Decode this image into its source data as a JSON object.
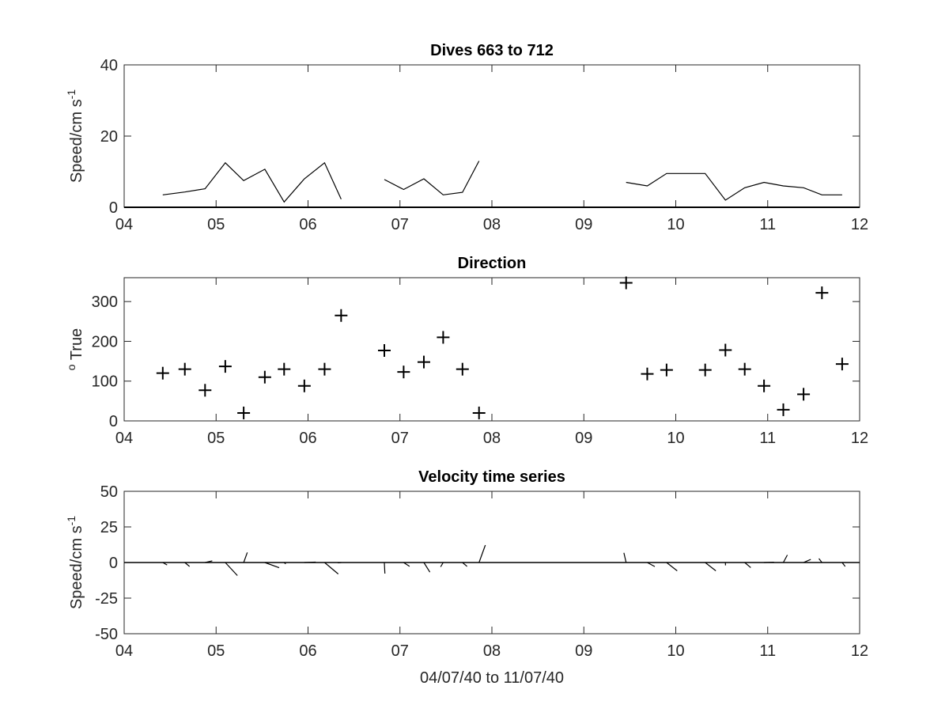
{
  "chart_data": [
    {
      "type": "line",
      "title": "Dives 663 to 712",
      "ylabel": "Speed/cm s",
      "ylabel_sup": "-1",
      "xlim": [
        4,
        12
      ],
      "ylim": [
        0,
        40
      ],
      "xticks": [
        4,
        5,
        6,
        7,
        8,
        9,
        10,
        11,
        12
      ],
      "xtick_labels": [
        "04",
        "05",
        "06",
        "07",
        "08",
        "09",
        "10",
        "11",
        "12"
      ],
      "yticks": [
        0,
        20,
        40
      ],
      "ytick_labels": [
        "0",
        "20",
        "40"
      ],
      "segments": [
        {
          "x": [
            4.42,
            4.66,
            4.88,
            5.1,
            5.3,
            5.53,
            5.74,
            5.96,
            6.18,
            6.36
          ],
          "y": [
            3.5,
            4.3,
            5.2,
            12.5,
            7.5,
            10.7,
            1.5,
            8.0,
            12.5,
            2.3
          ]
        },
        {
          "x": [
            6.83,
            7.04,
            7.26,
            7.47,
            7.68,
            7.86
          ],
          "y": [
            7.8,
            5.0,
            8.0,
            3.5,
            4.2,
            13.0
          ]
        },
        {
          "x": [
            9.46,
            9.69,
            9.9,
            10.11,
            10.32,
            10.54,
            10.75,
            10.96,
            11.17,
            11.39,
            11.59,
            11.81
          ],
          "y": [
            7.0,
            6.0,
            9.5,
            9.5,
            9.5,
            2.0,
            5.5,
            7.0,
            6.0,
            5.5,
            3.5,
            3.5
          ]
        }
      ]
    },
    {
      "type": "scatter",
      "title": "Direction",
      "ylabel": " True",
      "ylabel_prefix_sup": "o",
      "xlim": [
        4,
        12
      ],
      "ylim": [
        0,
        360
      ],
      "xticks": [
        4,
        5,
        6,
        7,
        8,
        9,
        10,
        11,
        12
      ],
      "xtick_labels": [
        "04",
        "05",
        "06",
        "07",
        "08",
        "09",
        "10",
        "11",
        "12"
      ],
      "yticks": [
        0,
        100,
        200,
        300
      ],
      "ytick_labels": [
        "0",
        "100",
        "200",
        "300"
      ],
      "marker": "+",
      "x": [
        4.42,
        4.66,
        4.88,
        5.1,
        5.3,
        5.53,
        5.74,
        5.96,
        6.18,
        6.36,
        6.83,
        7.04,
        7.26,
        7.47,
        7.68,
        7.86,
        9.46,
        9.69,
        9.9,
        10.32,
        10.54,
        10.75,
        10.96,
        11.17,
        11.39,
        11.59,
        11.81
      ],
      "y": [
        120,
        130,
        77,
        137,
        20,
        110,
        130,
        88,
        130,
        265,
        177,
        123,
        148,
        210,
        130,
        20,
        347,
        118,
        128,
        128,
        178,
        130,
        88,
        28,
        67,
        322,
        143
      ]
    },
    {
      "type": "vector",
      "title": "Velocity time series",
      "ylabel": "Speed/cm s",
      "ylabel_sup": "-1",
      "xlabel": "04/07/40 to 11/07/40",
      "xlim": [
        4,
        12
      ],
      "ylim": [
        -50,
        50
      ],
      "xticks": [
        4,
        5,
        6,
        7,
        8,
        9,
        10,
        11,
        12
      ],
      "xtick_labels": [
        "04",
        "05",
        "06",
        "07",
        "08",
        "09",
        "10",
        "11",
        "12"
      ],
      "yticks": [
        -50,
        -25,
        0,
        25,
        50
      ],
      "ytick_labels": [
        "-50",
        "-25",
        "0",
        "25",
        "50"
      ],
      "vectors": [
        {
          "x": 4.42,
          "speed": 3.5,
          "dir": 120
        },
        {
          "x": 4.66,
          "speed": 4.3,
          "dir": 130
        },
        {
          "x": 4.88,
          "speed": 5.2,
          "dir": 77
        },
        {
          "x": 5.1,
          "speed": 12.5,
          "dir": 137
        },
        {
          "x": 5.3,
          "speed": 7.5,
          "dir": 20
        },
        {
          "x": 5.53,
          "speed": 10.7,
          "dir": 110
        },
        {
          "x": 5.74,
          "speed": 1.5,
          "dir": 130
        },
        {
          "x": 5.96,
          "speed": 8.0,
          "dir": 88
        },
        {
          "x": 6.18,
          "speed": 12.5,
          "dir": 130
        },
        {
          "x": 6.36,
          "speed": 2.3,
          "dir": 265
        },
        {
          "x": 6.83,
          "speed": 7.8,
          "dir": 177
        },
        {
          "x": 7.04,
          "speed": 5.0,
          "dir": 123
        },
        {
          "x": 7.26,
          "speed": 8.0,
          "dir": 148
        },
        {
          "x": 7.47,
          "speed": 3.5,
          "dir": 210
        },
        {
          "x": 7.68,
          "speed": 4.2,
          "dir": 130
        },
        {
          "x": 7.86,
          "speed": 13.0,
          "dir": 20
        },
        {
          "x": 9.46,
          "speed": 7.0,
          "dir": 347
        },
        {
          "x": 9.69,
          "speed": 6.0,
          "dir": 118
        },
        {
          "x": 9.9,
          "speed": 9.5,
          "dir": 128
        },
        {
          "x": 10.32,
          "speed": 9.5,
          "dir": 128
        },
        {
          "x": 10.54,
          "speed": 2.0,
          "dir": 178
        },
        {
          "x": 10.75,
          "speed": 5.5,
          "dir": 130
        },
        {
          "x": 10.96,
          "speed": 7.0,
          "dir": 88
        },
        {
          "x": 11.17,
          "speed": 6.0,
          "dir": 28
        },
        {
          "x": 11.39,
          "speed": 5.5,
          "dir": 67
        },
        {
          "x": 11.59,
          "speed": 3.5,
          "dir": 322
        },
        {
          "x": 11.81,
          "speed": 3.5,
          "dir": 143
        }
      ]
    }
  ]
}
